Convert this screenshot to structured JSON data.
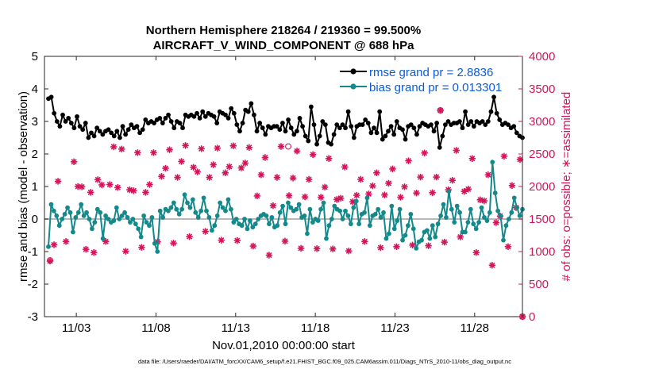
{
  "chart_data": {
    "type": "line",
    "title_line1": "Northern Hemisphere 218264 / 219360 = 99.500%",
    "title_line2": "AIRCRAFT_V_WIND_COMPONENT @ 688 hPa",
    "xlabel": "Nov.01,2010 00:00:00 start",
    "ylabel_left": "rmse and bias (model - observation)",
    "ylabel_right": "# of obs: o=possible; ∗=assimilated",
    "footnote": "data file: /Users/raeder/DAI/ATM_forcXX/CAM6_setup/f.e21.FHIST_BGC.f09_025.CAM6assim.011/Diags_NTrS_2010-11/obs_diag_output.nc",
    "xlim": [
      1,
      31
    ],
    "ylim_left": [
      -3,
      5
    ],
    "ylim_right": [
      0,
      4000
    ],
    "x_ticks": [
      3,
      8,
      13,
      18,
      23,
      28
    ],
    "x_tick_labels": [
      "11/03",
      "11/08",
      "11/13",
      "11/18",
      "11/23",
      "11/28"
    ],
    "y_ticks_left": [
      -3,
      -2,
      -1,
      0,
      1,
      2,
      3,
      4,
      5
    ],
    "y_tick_labels_left": [
      "-3",
      "-2",
      "-1",
      "0",
      "1",
      "2",
      "3",
      "4",
      "5"
    ],
    "y_ticks_right": [
      0,
      500,
      1000,
      1500,
      2000,
      2500,
      3000,
      3500,
      4000
    ],
    "y_tick_labels_right": [
      "0",
      "500",
      "1000",
      "1500",
      "2000",
      "2500",
      "3000",
      "3500",
      "4000"
    ],
    "colors": {
      "rmse": "#000000",
      "bias": "#13898c",
      "obs": "#d4145a",
      "zero": "#b8b8b8",
      "legend_text": "#0b5bd7"
    },
    "series": [
      {
        "name": "rmse grand pr = 2.8836",
        "values": [
          3.7,
          3.75,
          3.25,
          3.0,
          2.85,
          3.2,
          3.0,
          3.1,
          2.95,
          2.8,
          3.15,
          2.85,
          2.75,
          2.95,
          2.5,
          2.65,
          2.55,
          2.8,
          2.7,
          2.6,
          2.7,
          2.75,
          2.65,
          2.55,
          2.7,
          2.5,
          2.85,
          2.6,
          2.75,
          2.9,
          2.8,
          2.85,
          2.65,
          2.75,
          3.05,
          2.95,
          3.0,
          2.95,
          3.05,
          3.1,
          2.95,
          3.1,
          3.2,
          3.0,
          2.8,
          3.0,
          2.95,
          2.8,
          3.2,
          3.15,
          3.2,
          3.15,
          3.25,
          3.1,
          3.3,
          3.15,
          3.25,
          3.2,
          3.15,
          2.95,
          3.3,
          3.25,
          3.2,
          3.1,
          3.4,
          3.25,
          2.9,
          2.7,
          2.95,
          3.35,
          3.3,
          3.55,
          3.2,
          2.7,
          2.95,
          2.8,
          2.6,
          2.85,
          2.8,
          2.85,
          2.85,
          2.75,
          2.95,
          2.7,
          3.05,
          2.8,
          2.6,
          2.7,
          3.1,
          2.85,
          2.55,
          2.4,
          3.45,
          2.9,
          2.3,
          2.55,
          3.0,
          2.9,
          2.35,
          2.3,
          2.6,
          2.9,
          2.8,
          2.9,
          2.8,
          3.3,
          2.85,
          2.5,
          2.85,
          2.9,
          2.9,
          3.05,
          2.95,
          2.65,
          2.8,
          2.65,
          3.3,
          2.45,
          2.55,
          2.7,
          2.85,
          2.6,
          3.0,
          2.8,
          2.75,
          2.45,
          2.85,
          2.9,
          2.8,
          2.6,
          2.85,
          2.95,
          2.9,
          2.85,
          2.9,
          2.7,
          2.95,
          2.2,
          2.55,
          2.9,
          3.0,
          2.9,
          2.95,
          2.95,
          3.0,
          2.8,
          3.3,
          2.9,
          3.0,
          2.85,
          3.0,
          2.95,
          3.0,
          2.9,
          3.0,
          3.3,
          3.75,
          3.25,
          3.05,
          2.9,
          2.95,
          2.9,
          2.8,
          2.85,
          2.65,
          2.55,
          2.5
        ]
      },
      {
        "name": "bias grand pr = 0.013301",
        "values": [
          -0.85,
          0.45,
          0.25,
          0.1,
          -0.2,
          0.0,
          0.15,
          0.35,
          0.2,
          -0.4,
          0.05,
          0.2,
          0.45,
          0.1,
          0.2,
          0.0,
          -0.3,
          -0.1,
          0.3,
          0.2,
          -0.6,
          0.1,
          0.0,
          -0.1,
          -0.05,
          0.35,
          0.0,
          0.1,
          0.2,
          0.05,
          -0.1,
          0.0,
          -0.15,
          -0.3,
          -0.55,
          0.1,
          -0.1,
          -0.2,
          0.05,
          -0.75,
          -1.0,
          0.25,
          0.05,
          0.3,
          0.25,
          0.35,
          0.5,
          0.3,
          0.15,
          0.3,
          0.75,
          0.5,
          0.35,
          0.6,
          0.2,
          0.05,
          0.25,
          0.65,
          0.25,
          0.05,
          -0.35,
          -0.2,
          0.1,
          0.5,
          0.35,
          0.25,
          0.6,
          0.3,
          -0.1,
          0.0,
          -0.15,
          -0.2,
          0.0,
          -0.3,
          -0.05,
          -0.25,
          -0.15,
          0.0,
          0.1,
          0.15,
          0.1,
          -0.15,
          0.05,
          -0.25,
          -0.2,
          0.2,
          0.4,
          -0.15,
          0.5,
          0.35,
          0.25,
          0.3,
          0.45,
          0.05,
          0.1,
          -0.45,
          0.3,
          -0.1,
          0.0,
          -0.05,
          0.3,
          0.5,
          -0.6,
          -0.2,
          0.0,
          0.4,
          0.3,
          0.25,
          0.0,
          0.25,
          0.1,
          -0.15,
          0.35,
          0.55,
          -0.15,
          0.15,
          0.2,
          0.65,
          -0.2,
          0.1,
          0.15,
          0.3,
          0.05,
          0.2,
          -0.6,
          -0.45,
          0.4,
          -0.3,
          -0.05,
          0.3,
          -0.65,
          -0.5,
          -0.2,
          0.15,
          -0.3,
          -0.9,
          -0.7,
          -0.65,
          -0.4,
          -0.35,
          -0.6,
          -0.2,
          -0.55,
          -0.15,
          0.1,
          0.45,
          0.05,
          0.85,
          0.3,
          -0.1,
          0.4,
          0.2,
          -0.4,
          -0.4,
          -0.1,
          0.3,
          -0.15,
          -0.3,
          -0.1,
          0.35,
          0.05,
          -0.05,
          0.2,
          1.75,
          0.8,
          0.25,
          0.1,
          -0.65,
          -0.2,
          0.0,
          0.2,
          0.65,
          0.35,
          0.1,
          0.3
        ]
      }
    ],
    "obs_assimilated": [
      [
        1.35,
        855
      ],
      [
        1.6,
        1105
      ],
      [
        1.85,
        2080
      ],
      [
        2.35,
        1155
      ],
      [
        2.85,
        2380
      ],
      [
        3.1,
        2000
      ],
      [
        3.35,
        1995
      ],
      [
        3.9,
        1910
      ],
      [
        3.6,
        1035
      ],
      [
        4.35,
        2105
      ],
      [
        4.1,
        985
      ],
      [
        4.6,
        2025
      ],
      [
        5.35,
        2610
      ],
      [
        5.1,
        2030
      ],
      [
        4.85,
        1155
      ],
      [
        5.6,
        1985
      ],
      [
        5.85,
        2575
      ],
      [
        6.35,
        1950
      ],
      [
        6.1,
        1005
      ],
      [
        6.6,
        1935
      ],
      [
        6.85,
        2520
      ],
      [
        7.35,
        1910
      ],
      [
        7.1,
        1065
      ],
      [
        7.6,
        2030
      ],
      [
        7.85,
        2520
      ],
      [
        8.35,
        2155
      ],
      [
        8.1,
        1150
      ],
      [
        8.6,
        2280
      ],
      [
        8.85,
        2565
      ],
      [
        9.35,
        2140
      ],
      [
        9.1,
        1130
      ],
      [
        9.6,
        2385
      ],
      [
        9.85,
        2630
      ],
      [
        10.35,
        2295
      ],
      [
        10.1,
        1230
      ],
      [
        10.6,
        2225
      ],
      [
        10.85,
        2580
      ],
      [
        11.35,
        2140
      ],
      [
        11.1,
        1310
      ],
      [
        11.6,
        2335
      ],
      [
        11.85,
        2590
      ],
      [
        12.35,
        2210
      ],
      [
        12.1,
        1175
      ],
      [
        12.6,
        2305
      ],
      [
        12.85,
        2625
      ],
      [
        13.35,
        2285
      ],
      [
        13.1,
        1170
      ],
      [
        13.6,
        2360
      ],
      [
        13.85,
        2600
      ],
      [
        14.35,
        1855
      ],
      [
        14.1,
        1085
      ],
      [
        14.6,
        2180
      ],
      [
        14.85,
        2445
      ],
      [
        15.35,
        1705
      ],
      [
        15.1,
        945
      ],
      [
        15.6,
        2140
      ],
      [
        15.85,
        2615
      ],
      [
        16.35,
        1860
      ],
      [
        16.1,
        1160
      ],
      [
        16.6,
        2130
      ],
      [
        16.85,
        2545
      ],
      [
        17.35,
        1840
      ],
      [
        17.1,
        1050
      ],
      [
        17.6,
        2110
      ],
      [
        17.85,
        2490
      ],
      [
        18.35,
        1835
      ],
      [
        18.1,
        1045
      ],
      [
        18.6,
        1990
      ],
      [
        18.85,
        2430
      ],
      [
        19.35,
        1800
      ],
      [
        19.1,
        1040
      ],
      [
        19.6,
        1820
      ],
      [
        19.85,
        2300
      ],
      [
        20.35,
        1765
      ],
      [
        20.1,
        1010
      ],
      [
        20.6,
        1865
      ],
      [
        20.85,
        2110
      ],
      [
        21.35,
        1885
      ],
      [
        21.1,
        1155
      ],
      [
        21.6,
        2010
      ],
      [
        21.85,
        2210
      ],
      [
        22.35,
        1870
      ],
      [
        22.1,
        1060
      ],
      [
        22.6,
        2050
      ],
      [
        22.85,
        2270
      ],
      [
        23.35,
        1835
      ],
      [
        23.1,
        1075
      ],
      [
        23.6,
        1995
      ],
      [
        23.85,
        2395
      ],
      [
        24.35,
        1900
      ],
      [
        24.1,
        1100
      ],
      [
        24.6,
        2145
      ],
      [
        24.85,
        2515
      ],
      [
        25.35,
        1905
      ],
      [
        25.1,
        1090
      ],
      [
        25.6,
        2145
      ],
      [
        25.85,
        3170
      ],
      [
        26.35,
        1950
      ],
      [
        26.1,
        1145
      ],
      [
        26.6,
        2095
      ],
      [
        26.85,
        2555
      ],
      [
        27.35,
        1925
      ],
      [
        27.1,
        1225
      ],
      [
        27.6,
        1960
      ],
      [
        27.85,
        2430
      ],
      [
        28.35,
        1795
      ],
      [
        28.1,
        985
      ],
      [
        28.6,
        1780
      ],
      [
        28.85,
        2180
      ],
      [
        29.35,
        1445
      ],
      [
        29.1,
        790
      ],
      [
        29.6,
        1545
      ],
      [
        29.85,
        2465
      ],
      [
        30.35,
        2015
      ],
      [
        30.1,
        1075
      ],
      [
        30.6,
        1675
      ],
      [
        30.85,
        2415
      ],
      [
        31,
        0
      ]
    ],
    "obs_possible": [
      [
        1.35,
        865
      ],
      [
        16.3,
        2615
      ],
      [
        25.85,
        3170
      ],
      [
        31,
        0
      ]
    ]
  }
}
